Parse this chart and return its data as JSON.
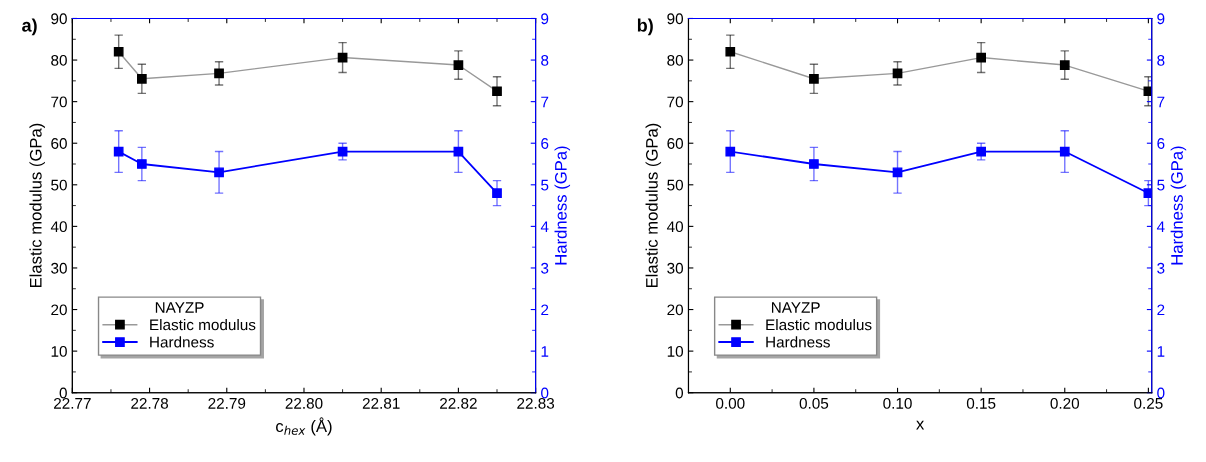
{
  "chart_data": [
    {
      "type": "line",
      "title": "a)",
      "xlabel": "c$_{hex}$ (Å)",
      "ylabel": "Elastic modulus (GPa)",
      "y2label": "Hardness (GPa)",
      "legend_title": "NAYZP",
      "legend": "bottom left",
      "marker": "square",
      "line_style": "solid",
      "xlim": [
        22.77,
        22.83
      ],
      "xticks": [
        22.77,
        22.78,
        22.79,
        {
          "value": 22.8,
          "label": "22.80"
        },
        22.81,
        22.82,
        22.83
      ],
      "ylim": [
        0,
        90
      ],
      "yticks": [
        0,
        10,
        20,
        30,
        40,
        50,
        60,
        70,
        80,
        90
      ],
      "y2lim": [
        0,
        9
      ],
      "y2ticks": [
        0,
        1,
        2,
        3,
        4,
        5,
        6,
        7,
        8,
        9
      ],
      "x": [
        22.776,
        22.779,
        22.789,
        22.805,
        22.82,
        22.825
      ],
      "series": [
        {
          "name": "Elastic modulus",
          "color": "#000000",
          "values": [
            82,
            75.5,
            76.8,
            80.6,
            78.8,
            72.5
          ],
          "errors": [
            [
              78,
              86
            ],
            [
              72,
              79
            ],
            [
              74,
              79.6
            ],
            [
              77,
              84.2
            ],
            [
              75.4,
              82.2
            ],
            [
              69,
              76
            ]
          ]
        },
        {
          "name": "Hardness",
          "color": "#0000ff",
          "axis": "y2",
          "values": [
            5.8,
            5.5,
            5.3,
            5.8,
            5.8,
            4.8
          ],
          "errors": [
            [
              5.3,
              6.3
            ],
            [
              5.1,
              5.9
            ],
            [
              4.8,
              5.8
            ],
            [
              5.6,
              6.0
            ],
            [
              5.3,
              6.3
            ],
            [
              4.5,
              5.1
            ]
          ]
        }
      ]
    },
    {
      "type": "line",
      "title": "b)",
      "xlabel": "x",
      "ylabel": "Elastic modulus (GPa)",
      "y2label": "Hardness (GPa)",
      "legend_title": "NAYZP",
      "legend": "bottom left",
      "marker": "square",
      "line_style": "solid",
      "xlim": [
        -0.025,
        0.252
      ],
      "xticks": [
        {
          "value": 0,
          "label": "0.00"
        },
        0.05,
        {
          "value": 0.1,
          "label": "0.10"
        },
        0.15,
        {
          "value": 0.2,
          "label": "0.20"
        },
        0.25
      ],
      "ylim": [
        0,
        90
      ],
      "yticks": [
        0,
        10,
        20,
        30,
        40,
        50,
        60,
        70,
        80,
        90
      ],
      "y2lim": [
        0,
        9
      ],
      "y2ticks": [
        0,
        1,
        2,
        3,
        4,
        5,
        6,
        7,
        8,
        9
      ],
      "x": [
        0,
        0.05,
        0.1,
        0.15,
        0.2,
        0.25
      ],
      "series": [
        {
          "name": "Elastic modulus",
          "color": "#000000",
          "values": [
            82,
            75.5,
            76.8,
            80.6,
            78.8,
            72.5
          ],
          "errors": [
            [
              78,
              86
            ],
            [
              72,
              79
            ],
            [
              74,
              79.6
            ],
            [
              77,
              84.2
            ],
            [
              75.4,
              82.2
            ],
            [
              69,
              76
            ]
          ]
        },
        {
          "name": "Hardness",
          "color": "#0000ff",
          "axis": "y2",
          "values": [
            5.8,
            5.5,
            5.3,
            5.8,
            5.8,
            4.8
          ],
          "errors": [
            [
              5.3,
              6.3
            ],
            [
              5.1,
              5.9
            ],
            [
              4.8,
              5.8
            ],
            [
              5.6,
              6.0
            ],
            [
              5.3,
              6.3
            ],
            [
              4.5,
              5.1
            ]
          ]
        }
      ]
    }
  ]
}
